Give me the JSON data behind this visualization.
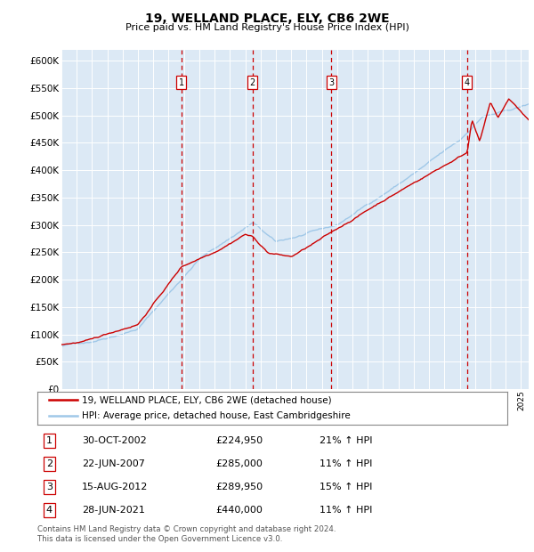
{
  "title": "19, WELLAND PLACE, ELY, CB6 2WE",
  "subtitle": "Price paid vs. HM Land Registry's House Price Index (HPI)",
  "plot_bg_color": "#dce9f5",
  "hpi_color": "#a0c8e8",
  "price_color": "#cc0000",
  "ylim": [
    0,
    620000
  ],
  "yticks": [
    0,
    50000,
    100000,
    150000,
    200000,
    250000,
    300000,
    350000,
    400000,
    450000,
    500000,
    550000,
    600000
  ],
  "purchases": [
    {
      "label": "1",
      "date": "30-OCT-2002",
      "price": 224950,
      "hpi_pct": "21%",
      "x_approx": 2002.83
    },
    {
      "label": "2",
      "date": "22-JUN-2007",
      "price": 285000,
      "hpi_pct": "11%",
      "x_approx": 2007.47
    },
    {
      "label": "3",
      "date": "15-AUG-2012",
      "price": 289950,
      "hpi_pct": "15%",
      "x_approx": 2012.62
    },
    {
      "label": "4",
      "date": "28-JUN-2021",
      "price": 440000,
      "hpi_pct": "11%",
      "x_approx": 2021.49
    }
  ],
  "legend_line1": "19, WELLAND PLACE, ELY, CB6 2WE (detached house)",
  "legend_line2": "HPI: Average price, detached house, East Cambridgeshire",
  "footer": "Contains HM Land Registry data © Crown copyright and database right 2024.\nThis data is licensed under the Open Government Licence v3.0.",
  "xmin": 1995.0,
  "xmax": 2025.5
}
